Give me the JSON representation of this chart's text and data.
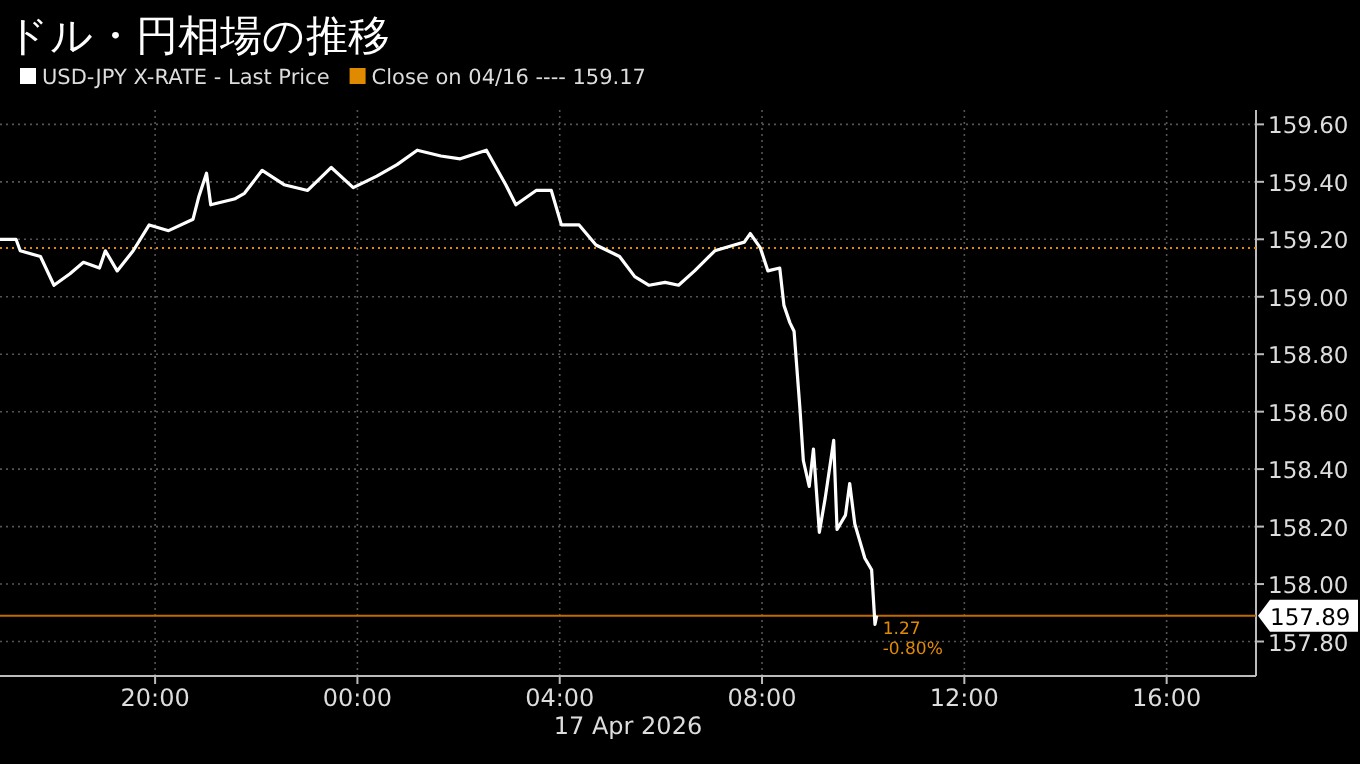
{
  "chart_data": {
    "type": "line",
    "title": "ドル・円相場の推移",
    "xlabel": "17 Apr 2026",
    "x": [
      "2026-04-16T16:56",
      "2026-04-16T17:15",
      "2026-04-16T17:20",
      "2026-04-16T17:44",
      "2026-04-16T18:00",
      "2026-04-16T18:19",
      "2026-04-16T18:35",
      "2026-04-16T18:54",
      "2026-04-16T19:01",
      "2026-04-16T19:15",
      "2026-04-16T19:34",
      "2026-04-16T19:53",
      "2026-04-16T20:16",
      "2026-04-16T20:45",
      "2026-04-16T20:52",
      "2026-04-16T21:01",
      "2026-04-16T21:06",
      "2026-04-16T21:34",
      "2026-04-16T21:46",
      "2026-04-16T22:07",
      "2026-04-16T22:33",
      "2026-04-16T23:01",
      "2026-04-16T23:29",
      "2026-04-16T23:55",
      "2026-04-17T00:23",
      "2026-04-17T00:47",
      "2026-04-17T01:11",
      "2026-04-17T01:39",
      "2026-04-17T02:02",
      "2026-04-17T02:33",
      "2026-04-17T02:56",
      "2026-04-17T03:08",
      "2026-04-17T03:32",
      "2026-04-17T03:50",
      "2026-04-17T04:02",
      "2026-04-17T04:23",
      "2026-04-17T04:43",
      "2026-04-17T05:11",
      "2026-04-17T05:29",
      "2026-04-17T05:46",
      "2026-04-17T06:05",
      "2026-04-17T06:21",
      "2026-04-17T06:40",
      "2026-04-17T07:04",
      "2026-04-17T07:27",
      "2026-04-17T07:39",
      "2026-04-17T07:46",
      "2026-04-17T07:58",
      "2026-04-17T08:07",
      "2026-04-17T08:21",
      "2026-04-17T08:26",
      "2026-04-17T08:33",
      "2026-04-17T08:38",
      "2026-04-17T08:45",
      "2026-04-17T08:49",
      "2026-04-17T08:56",
      "2026-04-17T09:01",
      "2026-04-17T09:08",
      "2026-04-17T09:15",
      "2026-04-17T09:25",
      "2026-04-17T09:29",
      "2026-04-17T09:39",
      "2026-04-17T09:44",
      "2026-04-17T09:50",
      "2026-04-17T09:55",
      "2026-04-17T10:02",
      "2026-04-17T10:10",
      "2026-04-17T10:14",
      "2026-04-17T10:16"
    ],
    "series": [
      {
        "name": "USD-JPY X-RATE - Last Price",
        "color": "#ffffff",
        "values": [
          159.2,
          159.2,
          159.16,
          159.14,
          159.04,
          159.08,
          159.12,
          159.1,
          159.16,
          159.09,
          159.16,
          159.25,
          159.23,
          159.27,
          159.35,
          159.43,
          159.32,
          159.34,
          159.36,
          159.44,
          159.39,
          159.37,
          159.45,
          159.38,
          159.42,
          159.46,
          159.51,
          159.49,
          159.48,
          159.51,
          159.39,
          159.32,
          159.37,
          159.37,
          159.25,
          159.25,
          159.18,
          159.14,
          159.07,
          159.04,
          159.05,
          159.04,
          159.09,
          159.16,
          159.18,
          159.19,
          159.22,
          159.17,
          159.09,
          159.1,
          158.97,
          158.91,
          158.88,
          158.61,
          158.43,
          158.34,
          158.47,
          158.18,
          158.3,
          158.5,
          158.19,
          158.24,
          158.35,
          158.21,
          158.16,
          158.09,
          158.05,
          157.86,
          157.89
        ]
      }
    ],
    "xlim": [
      "2026-04-16T16:56",
      "2026-04-17T17:46"
    ],
    "ylim": [
      157.68,
      159.65
    ],
    "xticks": [
      {
        "value": "2026-04-16T20:00",
        "label": "20:00"
      },
      {
        "value": "2026-04-17T00:00",
        "label": "00:00"
      },
      {
        "value": "2026-04-17T04:00",
        "label": "04:00"
      },
      {
        "value": "2026-04-17T08:00",
        "label": "08:00"
      },
      {
        "value": "2026-04-17T12:00",
        "label": "12:00"
      },
      {
        "value": "2026-04-17T16:00",
        "label": "16:00"
      }
    ],
    "yticks": [
      {
        "value": 157.8,
        "label": "157.80"
      },
      {
        "value": 158.0,
        "label": "158.00"
      },
      {
        "value": 158.2,
        "label": "158.20"
      },
      {
        "value": 158.4,
        "label": "158.40"
      },
      {
        "value": 158.6,
        "label": "158.60"
      },
      {
        "value": 158.8,
        "label": "158.80"
      },
      {
        "value": 159.0,
        "label": "159.00"
      },
      {
        "value": 159.2,
        "label": "159.20"
      },
      {
        "value": 159.4,
        "label": "159.40"
      },
      {
        "value": 159.6,
        "label": "159.60"
      }
    ],
    "ref_lines": [
      {
        "axis": "y",
        "value": 159.17,
        "label": "Close on 04/16 ---- 159.17",
        "color": "#e08a00",
        "line_style": "dotted"
      },
      {
        "axis": "y",
        "value": 157.89,
        "label": "157.89",
        "color": "#c06a00",
        "line_style": "solid"
      }
    ],
    "annotations": [
      {
        "text": "1.27",
        "x": "2026-04-17T10:16",
        "y": 157.89
      },
      {
        "text": "-0.80%",
        "x": "2026-04-17T10:16",
        "y": 157.89
      }
    ],
    "grid": true,
    "legend": "top left",
    "marker": "none",
    "line_style": "solid"
  }
}
